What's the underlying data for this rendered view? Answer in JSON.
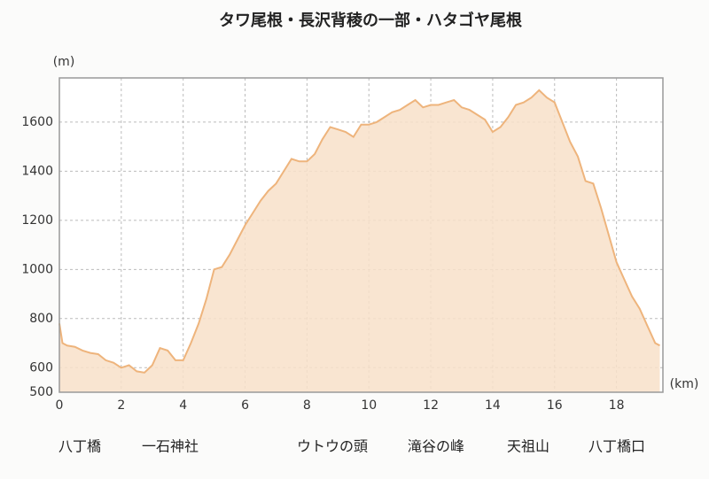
{
  "chart_data": {
    "type": "area",
    "title": "タワ尾根・長沢背稜の一部・ハタゴヤ尾根",
    "ylabel": "(m)",
    "xlabel": "(km)",
    "xlim": [
      0,
      19.5
    ],
    "ylim": [
      500,
      1780
    ],
    "xticks": [
      0,
      2,
      4,
      6,
      8,
      10,
      12,
      14,
      16,
      18
    ],
    "yticks": [
      500,
      600,
      800,
      1000,
      1200,
      1400,
      1600
    ],
    "grid": true,
    "color": "#eeb47c",
    "fill": "#f8e0c9",
    "x": [
      0,
      0.1,
      0.25,
      0.5,
      0.75,
      1.0,
      1.25,
      1.5,
      1.75,
      2.0,
      2.25,
      2.5,
      2.75,
      3.0,
      3.25,
      3.5,
      3.75,
      4.0,
      4.25,
      4.5,
      4.75,
      5.0,
      5.25,
      5.5,
      5.75,
      6.0,
      6.25,
      6.5,
      6.75,
      7.0,
      7.25,
      7.5,
      7.75,
      8.0,
      8.25,
      8.5,
      8.75,
      9.0,
      9.25,
      9.5,
      9.75,
      10.0,
      10.25,
      10.5,
      10.75,
      11.0,
      11.25,
      11.5,
      11.75,
      12.0,
      12.25,
      12.5,
      12.75,
      13.0,
      13.25,
      13.5,
      13.75,
      14.0,
      14.25,
      14.5,
      14.75,
      15.0,
      15.25,
      15.5,
      15.75,
      16.0,
      16.25,
      16.5,
      16.75,
      17.0,
      17.25,
      17.5,
      17.75,
      18.0,
      18.25,
      18.5,
      18.75,
      19.0,
      19.25,
      19.4
    ],
    "values": [
      780,
      700,
      690,
      685,
      670,
      660,
      655,
      630,
      620,
      600,
      610,
      585,
      580,
      610,
      680,
      670,
      630,
      630,
      700,
      780,
      880,
      1000,
      1010,
      1060,
      1120,
      1180,
      1230,
      1280,
      1320,
      1350,
      1400,
      1450,
      1440,
      1440,
      1470,
      1530,
      1580,
      1570,
      1560,
      1540,
      1590,
      1590,
      1600,
      1620,
      1640,
      1650,
      1670,
      1690,
      1660,
      1670,
      1670,
      1680,
      1690,
      1660,
      1650,
      1630,
      1610,
      1560,
      1580,
      1620,
      1670,
      1680,
      1700,
      1730,
      1700,
      1680,
      1600,
      1520,
      1460,
      1360,
      1350,
      1250,
      1140,
      1030,
      960,
      890,
      840,
      770,
      700,
      690
    ],
    "annotations": [
      "八丁橋",
      "一石神社",
      "ウトウの頭",
      "滝谷の峰",
      "天祖山",
      "八丁橋口"
    ]
  }
}
